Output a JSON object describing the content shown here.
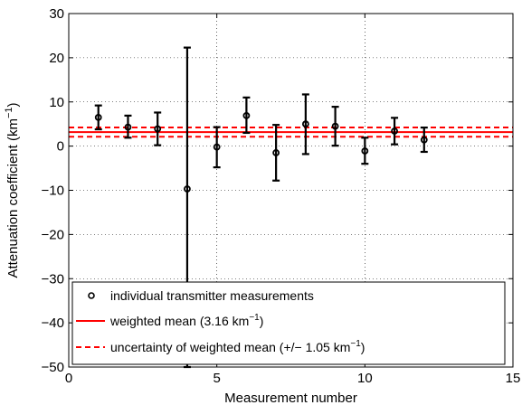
{
  "chart_data": {
    "type": "scatter",
    "title": "",
    "xlabel": "Measurement number",
    "ylabel_main": "Attenuation coefficient (km",
    "ylabel_sup": "−1",
    "ylabel_end": ")",
    "xlim": [
      0,
      15
    ],
    "ylim": [
      -50,
      30
    ],
    "xticks": [
      0,
      5,
      10,
      15
    ],
    "xtick_labels": [
      "0",
      "5",
      "10",
      "15"
    ],
    "yticks": [
      -50,
      -40,
      -30,
      -20,
      -10,
      0,
      10,
      20,
      30
    ],
    "ytick_labels": [
      "−50",
      "−40",
      "−30",
      "−20",
      "−10",
      "0",
      "10",
      "20",
      "30"
    ],
    "grid": true,
    "legend_position": "bottom-left",
    "series": [
      {
        "name": "individual transmitter measurements",
        "kind": "errorbar",
        "color": "#000000",
        "x": [
          1,
          2,
          3,
          4,
          5,
          6,
          7,
          8,
          9,
          10,
          11,
          12
        ],
        "y": [
          6.5,
          4.3,
          3.9,
          -9.7,
          -0.2,
          6.9,
          -1.5,
          5.0,
          4.5,
          -1.1,
          3.4,
          1.4
        ],
        "err_low": [
          2.7,
          2.4,
          3.7,
          40.3,
          4.6,
          3.9,
          6.3,
          6.8,
          4.4,
          2.9,
          3.0,
          2.7
        ],
        "err_high": [
          2.7,
          2.6,
          3.7,
          32.0,
          4.5,
          4.1,
          6.3,
          6.7,
          4.4,
          3.0,
          3.0,
          2.8
        ]
      }
    ],
    "hlines": [
      {
        "name_main": "weighted mean (3.16 km",
        "name_sup": "−1",
        "name_end": ")",
        "y": 3.16,
        "style": "solid",
        "color": "#ff0000"
      },
      {
        "name_main": "uncertainty of weighted mean (+/− 1.05 km",
        "name_sup": "−1",
        "name_end": ")",
        "y": [
          2.11,
          4.21
        ],
        "style": "dashed",
        "color": "#ff0000"
      }
    ]
  }
}
